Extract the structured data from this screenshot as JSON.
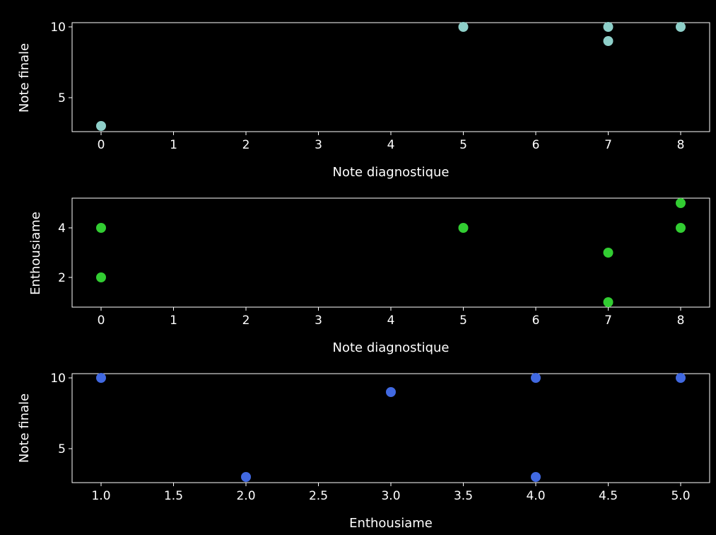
{
  "chart_data": [
    {
      "type": "scatter",
      "xlabel": "Note diagnostique",
      "ylabel": "Note finale",
      "xlim": [
        -0.4,
        8.4
      ],
      "ylim": [
        2.6,
        10.3
      ],
      "xticks": [
        "0",
        "1",
        "2",
        "3",
        "4",
        "5",
        "6",
        "7",
        "8"
      ],
      "yticks": [
        "5",
        "10"
      ],
      "grid": false,
      "color": "#8ecfc9",
      "series": [
        {
          "x": [
            0,
            5,
            7,
            7,
            8
          ],
          "y": [
            3,
            10,
            10,
            9,
            10
          ]
        }
      ]
    },
    {
      "type": "scatter",
      "xlabel": "Note diagnostique",
      "ylabel": "Enthousiame",
      "xlim": [
        -0.4,
        8.4
      ],
      "ylim": [
        0.8,
        5.2
      ],
      "xticks": [
        "0",
        "1",
        "2",
        "3",
        "4",
        "5",
        "6",
        "7",
        "8"
      ],
      "yticks": [
        "2",
        "4"
      ],
      "grid": false,
      "color": "#32cd32",
      "series": [
        {
          "x": [
            0,
            0,
            5,
            7,
            7,
            8,
            8
          ],
          "y": [
            4,
            2,
            4,
            3,
            1,
            5,
            4
          ]
        }
      ]
    },
    {
      "type": "scatter",
      "xlabel": "Enthousiame",
      "ylabel": "Note finale",
      "xlim": [
        0.8,
        5.2
      ],
      "ylim": [
        2.6,
        10.3
      ],
      "xticks": [
        "1.0",
        "1.5",
        "2.0",
        "2.5",
        "3.0",
        "3.5",
        "4.0",
        "4.5",
        "5.0"
      ],
      "yticks": [
        "5",
        "10"
      ],
      "grid": false,
      "color": "#4169e1",
      "series": [
        {
          "x": [
            1,
            2,
            3,
            4,
            4,
            5
          ],
          "y": [
            10,
            3,
            9,
            10,
            3,
            10
          ]
        }
      ]
    }
  ]
}
